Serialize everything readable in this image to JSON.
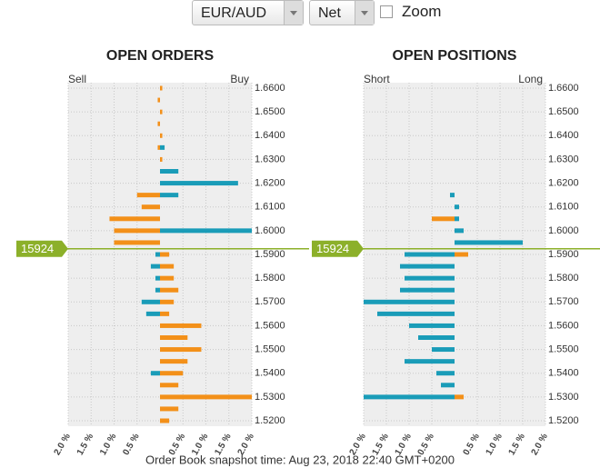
{
  "controls": {
    "pair": "EUR/AUD",
    "mode": "Net",
    "zoom_label": "Zoom"
  },
  "footer": "Order Book snapshot time: Aug 23, 2018 22:40 GMT+0200",
  "chart_data": [
    {
      "type": "butterfly-bar",
      "title": "OPEN ORDERS",
      "left_label": "Sell",
      "right_label": "Buy",
      "y": [
        1.52,
        1.525,
        1.53,
        1.535,
        1.54,
        1.545,
        1.55,
        1.555,
        1.56,
        1.565,
        1.57,
        1.575,
        1.58,
        1.585,
        1.59,
        1.595,
        1.6,
        1.605,
        1.61,
        1.615,
        1.62,
        1.625,
        1.63,
        1.635,
        1.64,
        1.645,
        1.65,
        1.655,
        1.66
      ],
      "series": [
        {
          "color": "#f39019",
          "values": [
            0.2,
            0.4,
            2.0,
            0.4,
            0.5,
            0.6,
            0.9,
            0.6,
            0.9,
            0.2,
            0.3,
            0.4,
            0.3,
            0.3,
            0.2,
            -1.0,
            -1.0,
            -1.1,
            -0.4,
            -0.5,
            null,
            null,
            0.05,
            -0.05,
            0.05,
            -0.05,
            0.05,
            -0.05,
            0.05
          ]
        },
        {
          "color": "#1a9cb8",
          "values": [
            null,
            null,
            null,
            null,
            -0.2,
            null,
            null,
            null,
            null,
            -0.3,
            -0.4,
            -0.1,
            -0.1,
            -0.2,
            -0.1,
            null,
            2.0,
            null,
            null,
            0.4,
            1.7,
            0.4,
            null,
            0.1,
            null,
            null,
            null,
            null,
            null
          ]
        }
      ],
      "xlim": [
        -2,
        2
      ],
      "xticks": [
        {
          "value": -2,
          "label": "2.0 %"
        },
        {
          "value": -1.5,
          "label": "1.5 %"
        },
        {
          "value": -1,
          "label": "1.0 %"
        },
        {
          "value": -0.5,
          "label": "0.5 %"
        },
        {
          "value": 0.5,
          "label": "0.5 %"
        },
        {
          "value": 1,
          "label": "1.0 %"
        },
        {
          "value": 1.5,
          "label": "1.5 %"
        },
        {
          "value": 2,
          "label": "2.0 %"
        }
      ],
      "ylim": [
        1.52,
        1.66
      ],
      "yticks": [
        {
          "value": 1.52,
          "label": "1.5200"
        },
        {
          "value": 1.53,
          "label": "1.5300"
        },
        {
          "value": 1.54,
          "label": "1.5400"
        },
        {
          "value": 1.55,
          "label": "1.5500"
        },
        {
          "value": 1.56,
          "label": "1.5600"
        },
        {
          "value": 1.57,
          "label": "1.5700"
        },
        {
          "value": 1.58,
          "label": "1.5800"
        },
        {
          "value": 1.59,
          "label": "1.5900"
        },
        {
          "value": 1.6,
          "label": "1.6000"
        },
        {
          "value": 1.61,
          "label": "1.6100"
        },
        {
          "value": 1.62,
          "label": "1.6200"
        },
        {
          "value": 1.63,
          "label": "1.6300"
        },
        {
          "value": 1.64,
          "label": "1.6400"
        },
        {
          "value": 1.65,
          "label": "1.6500"
        },
        {
          "value": 1.66,
          "label": "1.6600"
        }
      ],
      "current_price": {
        "value": 1.5924,
        "label": "15924",
        "color": "#8cb02a"
      },
      "grid": true
    },
    {
      "type": "butterfly-bar",
      "title": "OPEN POSITIONS",
      "left_label": "Short",
      "right_label": "Long",
      "y": [
        1.52,
        1.525,
        1.53,
        1.535,
        1.54,
        1.545,
        1.55,
        1.555,
        1.56,
        1.565,
        1.57,
        1.575,
        1.58,
        1.585,
        1.59,
        1.595,
        1.6,
        1.605,
        1.61,
        1.615,
        1.62,
        1.625,
        1.63,
        1.635,
        1.64,
        1.645,
        1.65,
        1.655,
        1.66
      ],
      "series": [
        {
          "color": "#f39019",
          "values": [
            null,
            null,
            0.2,
            null,
            null,
            null,
            null,
            null,
            null,
            null,
            null,
            null,
            null,
            null,
            0.3,
            null,
            null,
            -0.5,
            null,
            null,
            null,
            null,
            null,
            null,
            null,
            null,
            null,
            null,
            null
          ]
        },
        {
          "color": "#1a9cb8",
          "values": [
            null,
            null,
            -2.0,
            -0.3,
            -0.4,
            -1.1,
            -0.5,
            -0.8,
            -1.0,
            -1.7,
            -2.0,
            -1.2,
            -1.1,
            -1.2,
            -1.1,
            1.5,
            0.2,
            0.1,
            0.1,
            -0.1,
            null,
            null,
            null,
            null,
            null,
            null,
            null,
            null,
            null
          ]
        }
      ],
      "xlim": [
        -2,
        2
      ],
      "xticks": [
        {
          "value": -2,
          "label": "2.0 %"
        },
        {
          "value": -1.5,
          "label": "1.5 %"
        },
        {
          "value": -1,
          "label": "1.0 %"
        },
        {
          "value": -0.5,
          "label": "0.5 %"
        },
        {
          "value": 0.5,
          "label": "0.5 %"
        },
        {
          "value": 1,
          "label": "1.0 %"
        },
        {
          "value": 1.5,
          "label": "1.5 %"
        },
        {
          "value": 2,
          "label": "2.0 %"
        }
      ],
      "ylim": [
        1.52,
        1.66
      ],
      "yticks": [
        {
          "value": 1.52,
          "label": "1.5200"
        },
        {
          "value": 1.53,
          "label": "1.5300"
        },
        {
          "value": 1.54,
          "label": "1.5400"
        },
        {
          "value": 1.55,
          "label": "1.5500"
        },
        {
          "value": 1.56,
          "label": "1.5600"
        },
        {
          "value": 1.57,
          "label": "1.5700"
        },
        {
          "value": 1.58,
          "label": "1.5800"
        },
        {
          "value": 1.59,
          "label": "1.5900"
        },
        {
          "value": 1.6,
          "label": "1.6000"
        },
        {
          "value": 1.61,
          "label": "1.6100"
        },
        {
          "value": 1.62,
          "label": "1.6200"
        },
        {
          "value": 1.63,
          "label": "1.6300"
        },
        {
          "value": 1.64,
          "label": "1.6400"
        },
        {
          "value": 1.65,
          "label": "1.6500"
        },
        {
          "value": 1.66,
          "label": "1.6600"
        }
      ],
      "current_price": {
        "value": 1.5924,
        "label": "15924",
        "color": "#8cb02a"
      },
      "grid": true
    }
  ]
}
